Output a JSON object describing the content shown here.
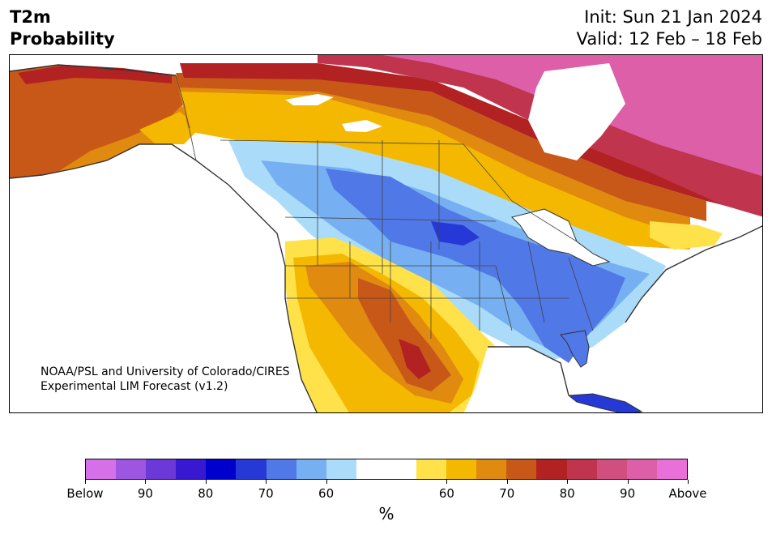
{
  "title": {
    "left_line1": "T2m",
    "left_line2": "Probability",
    "init": "Init: Sun 21 Jan 2024",
    "valid": "Valid: 12 Feb – 18 Feb"
  },
  "credit": {
    "line1": "NOAA/PSL and University of Colorado/CIRES",
    "line2": "Experimental LIM Forecast (v1.2)"
  },
  "colorbar": {
    "colors": [
      "#d670e8",
      "#9e55e2",
      "#6c38d8",
      "#3818d0",
      "#0000cc",
      "#2638d6",
      "#5078e6",
      "#76b0f2",
      "#aadcfa",
      "#ffffff",
      "#ffffff",
      "#ffe24a",
      "#f4b800",
      "#e08a10",
      "#c85818",
      "#b22222",
      "#c0344e",
      "#d04f7f",
      "#dc5fa8",
      "#e870d8"
    ],
    "ticks": [
      "Below",
      "90",
      "80",
      "70",
      "60",
      "60",
      "70",
      "80",
      "90",
      "Above"
    ],
    "unit": "%"
  },
  "map_colors": {
    "above_90": "#dc5fa8",
    "above_80": "#c0344e",
    "above_70": "#b22222",
    "above_60": "#c85818",
    "above_50": "#e08a10",
    "above_40": "#f4b800",
    "above_30": "#ffe24a",
    "below_30": "#aadcfa",
    "below_40": "#76b0f2",
    "below_50": "#5078e6",
    "below_60": "#2638d6",
    "coast": "#333333"
  }
}
